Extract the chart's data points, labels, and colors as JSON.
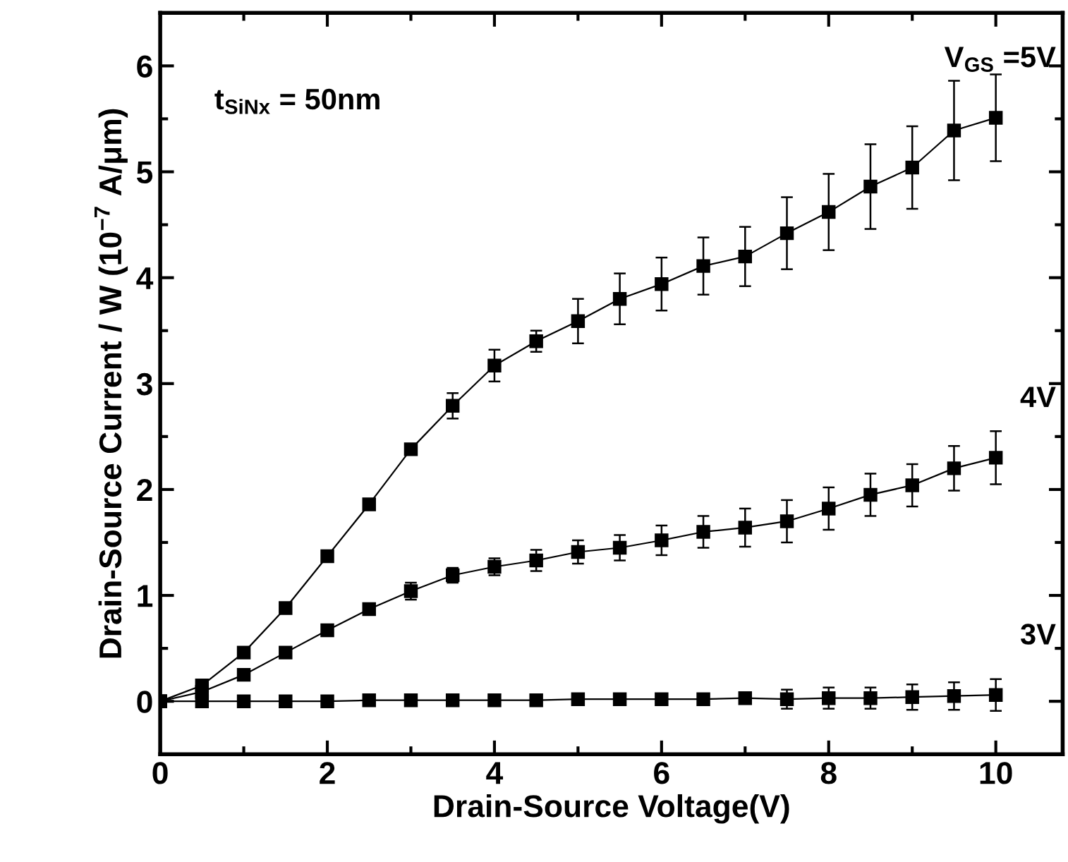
{
  "chart_data": {
    "type": "line",
    "xlabel": "Drain-Source Voltage(V)",
    "ylabel": "Drain-Source Current / W (10$^{−7}$ A/μm)",
    "x": [
      0,
      0.5,
      1,
      1.5,
      2,
      2.5,
      3,
      3.5,
      4,
      4.5,
      5,
      5.5,
      6,
      6.5,
      7,
      7.5,
      8,
      8.5,
      9,
      9.5,
      10
    ],
    "series": [
      {
        "name": "V$_{GS}$ =5V",
        "color": "#000000",
        "values": [
          0,
          0.15,
          0.46,
          0.88,
          1.37,
          1.86,
          2.38,
          2.79,
          3.17,
          3.4,
          3.59,
          3.8,
          3.94,
          4.11,
          4.2,
          4.42,
          4.62,
          4.86,
          5.04,
          5.39,
          5.51
        ],
        "errors": [
          null,
          null,
          null,
          null,
          0.03,
          0.03,
          0.05,
          0.12,
          0.15,
          0.1,
          0.21,
          0.24,
          0.25,
          0.27,
          0.28,
          0.34,
          0.36,
          0.4,
          0.39,
          0.47,
          0.41
        ]
      },
      {
        "name": "4V",
        "color": "#000000",
        "values": [
          0,
          0.09,
          0.25,
          0.46,
          0.67,
          0.87,
          1.04,
          1.19,
          1.27,
          1.33,
          1.41,
          1.45,
          1.52,
          1.6,
          1.64,
          1.7,
          1.82,
          1.95,
          2.04,
          2.2,
          2.3
        ],
        "errors": [
          null,
          null,
          null,
          null,
          0.03,
          0.04,
          0.08,
          0.07,
          0.08,
          0.1,
          0.11,
          0.12,
          0.14,
          0.15,
          0.18,
          0.2,
          0.2,
          0.2,
          0.2,
          0.21,
          0.25
        ]
      },
      {
        "name": "3V",
        "color": "#000000",
        "values": [
          0,
          0,
          0,
          0,
          0,
          0.01,
          0.01,
          0.01,
          0.01,
          0.01,
          0.02,
          0.02,
          0.02,
          0.02,
          0.03,
          0.02,
          0.03,
          0.03,
          0.04,
          0.05,
          0.06
        ],
        "errors": [
          null,
          null,
          null,
          null,
          null,
          null,
          null,
          null,
          null,
          null,
          null,
          null,
          null,
          0.03,
          0.05,
          0.09,
          0.1,
          0.1,
          0.12,
          0.13,
          0.15
        ]
      }
    ],
    "annotations": [
      "t$_{SiNx}$ = 50nm"
    ],
    "xlim": [
      0,
      10.8
    ],
    "ylim": [
      -0.5,
      6.5
    ],
    "xticks": [
      0,
      2,
      4,
      6,
      8,
      10
    ],
    "yticks": [
      0,
      1,
      2,
      3,
      4,
      5,
      6
    ],
    "marker": "square",
    "line_style": "solid",
    "grid": false,
    "legend": "right"
  }
}
